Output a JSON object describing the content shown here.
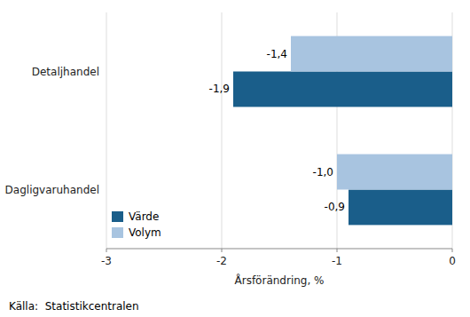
{
  "chart_data": {
    "type": "bar",
    "orientation": "horizontal",
    "categories": [
      "Detaljhandel",
      "Dagligvaruhandel"
    ],
    "series": [
      {
        "name": "Värde",
        "color": "#1a5e8a",
        "values": [
          -1.9,
          -0.9
        ],
        "value_labels": [
          "-1,9",
          "-0,9"
        ]
      },
      {
        "name": "Volym",
        "color": "#a8c4e0",
        "values": [
          -1.4,
          -1.0
        ],
        "value_labels": [
          "-1,4",
          "-1,0"
        ]
      }
    ],
    "xlabel": "Årsförändring, %",
    "xlim": [
      -3,
      0
    ],
    "xticks": [
      -3,
      -2,
      -1,
      0
    ],
    "grid": true,
    "legend": "lower left",
    "data_labels": true,
    "annotations": [
      "Källa:  Statistikcentralen"
    ]
  }
}
